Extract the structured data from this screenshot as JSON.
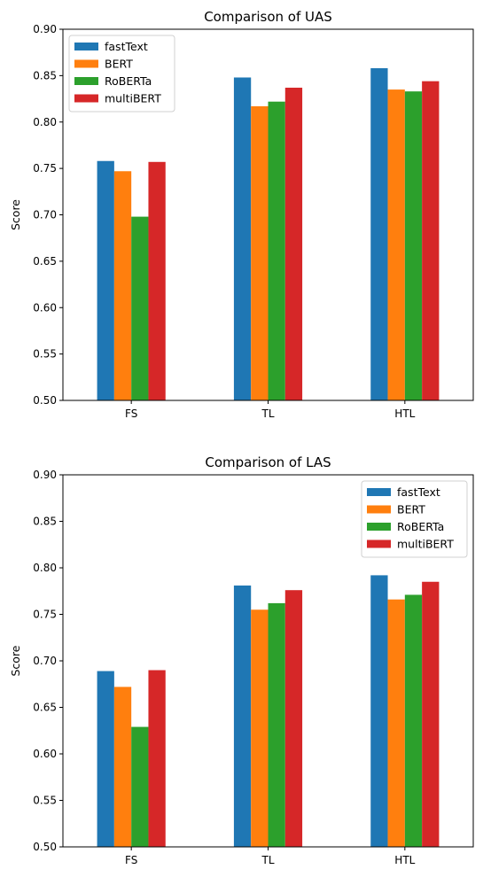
{
  "chart_data": [
    {
      "type": "bar",
      "title": "Comparison of UAS",
      "xlabel": "",
      "ylabel": "Score",
      "categories": [
        "FS",
        "TL",
        "HTL"
      ],
      "ylim": [
        0.5,
        0.9
      ],
      "yticks": [
        "0.50",
        "0.55",
        "0.60",
        "0.65",
        "0.70",
        "0.75",
        "0.80",
        "0.85",
        "0.90"
      ],
      "grid": false,
      "legend_position": "top-left",
      "series": [
        {
          "name": "fastText",
          "color": "#1f77b4",
          "values": [
            0.758,
            0.848,
            0.858
          ]
        },
        {
          "name": "BERT",
          "color": "#ff7f0e",
          "values": [
            0.747,
            0.817,
            0.835
          ]
        },
        {
          "name": "RoBERTa",
          "color": "#2ca02c",
          "values": [
            0.698,
            0.822,
            0.833
          ]
        },
        {
          "name": "multiBERT",
          "color": "#d62728",
          "values": [
            0.757,
            0.837,
            0.844
          ]
        }
      ]
    },
    {
      "type": "bar",
      "title": "Comparison of LAS",
      "xlabel": "",
      "ylabel": "Score",
      "categories": [
        "FS",
        "TL",
        "HTL"
      ],
      "ylim": [
        0.5,
        0.9
      ],
      "yticks": [
        "0.50",
        "0.55",
        "0.60",
        "0.65",
        "0.70",
        "0.75",
        "0.80",
        "0.85",
        "0.90"
      ],
      "grid": false,
      "legend_position": "top-right",
      "series": [
        {
          "name": "fastText",
          "color": "#1f77b4",
          "values": [
            0.689,
            0.781,
            0.792
          ]
        },
        {
          "name": "BERT",
          "color": "#ff7f0e",
          "values": [
            0.672,
            0.755,
            0.766
          ]
        },
        {
          "name": "RoBERTa",
          "color": "#2ca02c",
          "values": [
            0.629,
            0.762,
            0.771
          ]
        },
        {
          "name": "multiBERT",
          "color": "#d62728",
          "values": [
            0.69,
            0.776,
            0.785
          ]
        }
      ]
    }
  ]
}
